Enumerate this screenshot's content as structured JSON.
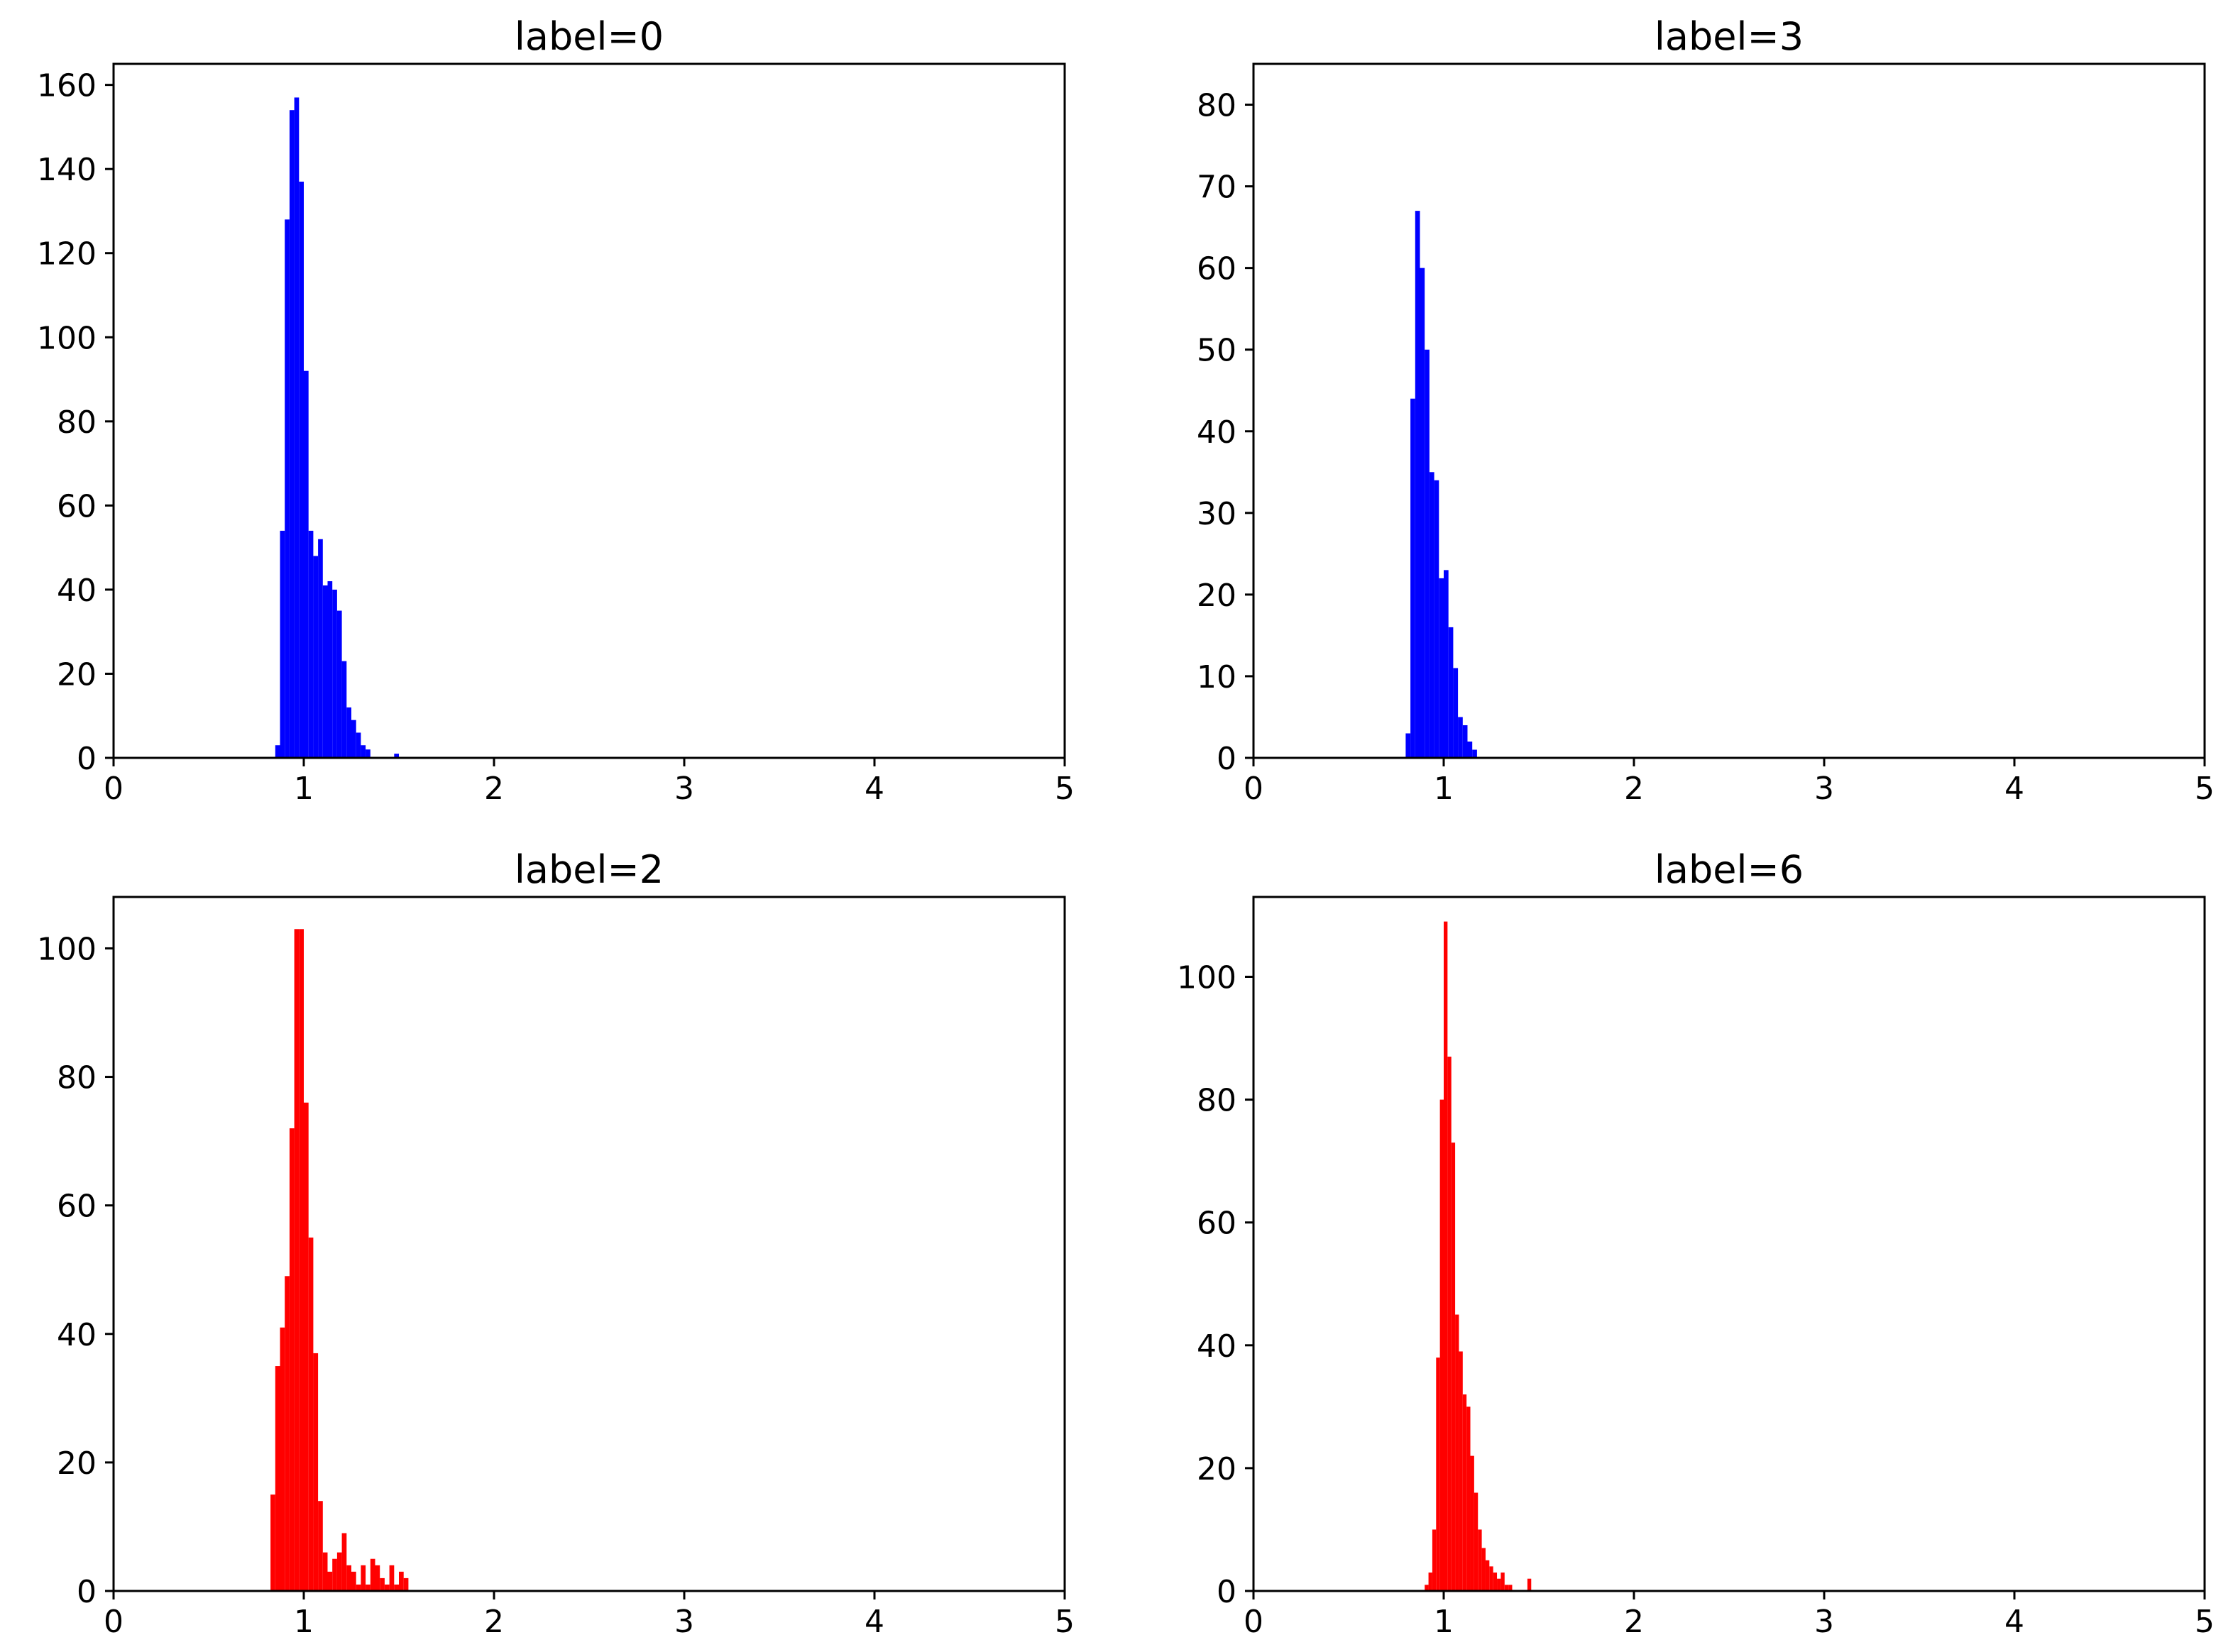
{
  "chart_data": [
    {
      "type": "histogram",
      "title": "label=0",
      "color": "#0000ff",
      "xlim": [
        0,
        5
      ],
      "ylim": [
        0,
        165
      ],
      "xticks": [
        "0",
        "1",
        "2",
        "3",
        "4",
        "5"
      ],
      "yticks": [
        "0",
        "20",
        "40",
        "60",
        "80",
        "100",
        "120",
        "140",
        "160"
      ],
      "bin_width": 0.025,
      "bins": [
        {
          "x": 0.85,
          "y": 3
        },
        {
          "x": 0.875,
          "y": 54
        },
        {
          "x": 0.9,
          "y": 128
        },
        {
          "x": 0.925,
          "y": 154
        },
        {
          "x": 0.95,
          "y": 157
        },
        {
          "x": 0.975,
          "y": 137
        },
        {
          "x": 1.0,
          "y": 92
        },
        {
          "x": 1.025,
          "y": 54
        },
        {
          "x": 1.05,
          "y": 48
        },
        {
          "x": 1.075,
          "y": 52
        },
        {
          "x": 1.1,
          "y": 41
        },
        {
          "x": 1.125,
          "y": 42
        },
        {
          "x": 1.15,
          "y": 40
        },
        {
          "x": 1.175,
          "y": 35
        },
        {
          "x": 1.2,
          "y": 23
        },
        {
          "x": 1.225,
          "y": 12
        },
        {
          "x": 1.25,
          "y": 9
        },
        {
          "x": 1.275,
          "y": 6
        },
        {
          "x": 1.3,
          "y": 3
        },
        {
          "x": 1.325,
          "y": 2
        },
        {
          "x": 1.475,
          "y": 1
        }
      ]
    },
    {
      "type": "histogram",
      "title": "label=3",
      "color": "#0000ff",
      "xlim": [
        0,
        5
      ],
      "ylim": [
        0,
        85
      ],
      "xticks": [
        "0",
        "1",
        "2",
        "3",
        "4",
        "5"
      ],
      "yticks": [
        "0",
        "10",
        "20",
        "30",
        "40",
        "50",
        "60",
        "70",
        "80"
      ],
      "bin_width": 0.025,
      "bins": [
        {
          "x": 0.8,
          "y": 3
        },
        {
          "x": 0.825,
          "y": 44
        },
        {
          "x": 0.85,
          "y": 67
        },
        {
          "x": 0.875,
          "y": 60
        },
        {
          "x": 0.9,
          "y": 50
        },
        {
          "x": 0.925,
          "y": 35
        },
        {
          "x": 0.95,
          "y": 34
        },
        {
          "x": 0.975,
          "y": 22
        },
        {
          "x": 1.0,
          "y": 23
        },
        {
          "x": 1.025,
          "y": 16
        },
        {
          "x": 1.05,
          "y": 11
        },
        {
          "x": 1.075,
          "y": 5
        },
        {
          "x": 1.1,
          "y": 4
        },
        {
          "x": 1.125,
          "y": 2
        },
        {
          "x": 1.15,
          "y": 1
        }
      ]
    },
    {
      "type": "histogram",
      "title": "label=2",
      "color": "#ff0000",
      "xlim": [
        0,
        5
      ],
      "ylim": [
        0,
        108
      ],
      "xticks": [
        "0",
        "1",
        "2",
        "3",
        "4",
        "5"
      ],
      "yticks": [
        "0",
        "20",
        "40",
        "60",
        "80",
        "100"
      ],
      "bin_width": 0.025,
      "bins": [
        {
          "x": 0.825,
          "y": 15
        },
        {
          "x": 0.85,
          "y": 35
        },
        {
          "x": 0.875,
          "y": 41
        },
        {
          "x": 0.9,
          "y": 49
        },
        {
          "x": 0.925,
          "y": 72
        },
        {
          "x": 0.95,
          "y": 103
        },
        {
          "x": 0.975,
          "y": 103
        },
        {
          "x": 1.0,
          "y": 76
        },
        {
          "x": 1.025,
          "y": 55
        },
        {
          "x": 1.05,
          "y": 37
        },
        {
          "x": 1.075,
          "y": 14
        },
        {
          "x": 1.1,
          "y": 6
        },
        {
          "x": 1.125,
          "y": 3
        },
        {
          "x": 1.15,
          "y": 5
        },
        {
          "x": 1.175,
          "y": 6
        },
        {
          "x": 1.2,
          "y": 9
        },
        {
          "x": 1.225,
          "y": 4
        },
        {
          "x": 1.25,
          "y": 3
        },
        {
          "x": 1.275,
          "y": 1
        },
        {
          "x": 1.3,
          "y": 4
        },
        {
          "x": 1.325,
          "y": 1
        },
        {
          "x": 1.35,
          "y": 5
        },
        {
          "x": 1.375,
          "y": 4
        },
        {
          "x": 1.4,
          "y": 2
        },
        {
          "x": 1.425,
          "y": 1
        },
        {
          "x": 1.45,
          "y": 4
        },
        {
          "x": 1.475,
          "y": 1
        },
        {
          "x": 1.5,
          "y": 3
        },
        {
          "x": 1.525,
          "y": 2
        }
      ]
    },
    {
      "type": "histogram",
      "title": "label=6",
      "color": "#ff0000",
      "xlim": [
        0,
        5
      ],
      "ylim": [
        0,
        113
      ],
      "xticks": [
        "0",
        "1",
        "2",
        "3",
        "4",
        "5"
      ],
      "yticks": [
        "0",
        "20",
        "40",
        "60",
        "80",
        "100"
      ],
      "bin_width": 0.02,
      "bins": [
        {
          "x": 0.9,
          "y": 1
        },
        {
          "x": 0.92,
          "y": 3
        },
        {
          "x": 0.94,
          "y": 10
        },
        {
          "x": 0.96,
          "y": 38
        },
        {
          "x": 0.98,
          "y": 80
        },
        {
          "x": 1.0,
          "y": 109
        },
        {
          "x": 1.02,
          "y": 87
        },
        {
          "x": 1.04,
          "y": 73
        },
        {
          "x": 1.06,
          "y": 45
        },
        {
          "x": 1.08,
          "y": 39
        },
        {
          "x": 1.1,
          "y": 32
        },
        {
          "x": 1.12,
          "y": 30
        },
        {
          "x": 1.14,
          "y": 22
        },
        {
          "x": 1.16,
          "y": 16
        },
        {
          "x": 1.18,
          "y": 10
        },
        {
          "x": 1.2,
          "y": 7
        },
        {
          "x": 1.22,
          "y": 5
        },
        {
          "x": 1.24,
          "y": 4
        },
        {
          "x": 1.26,
          "y": 3
        },
        {
          "x": 1.28,
          "y": 2
        },
        {
          "x": 1.3,
          "y": 3
        },
        {
          "x": 1.32,
          "y": 1
        },
        {
          "x": 1.34,
          "y": 1
        },
        {
          "x": 1.44,
          "y": 2
        }
      ]
    }
  ]
}
